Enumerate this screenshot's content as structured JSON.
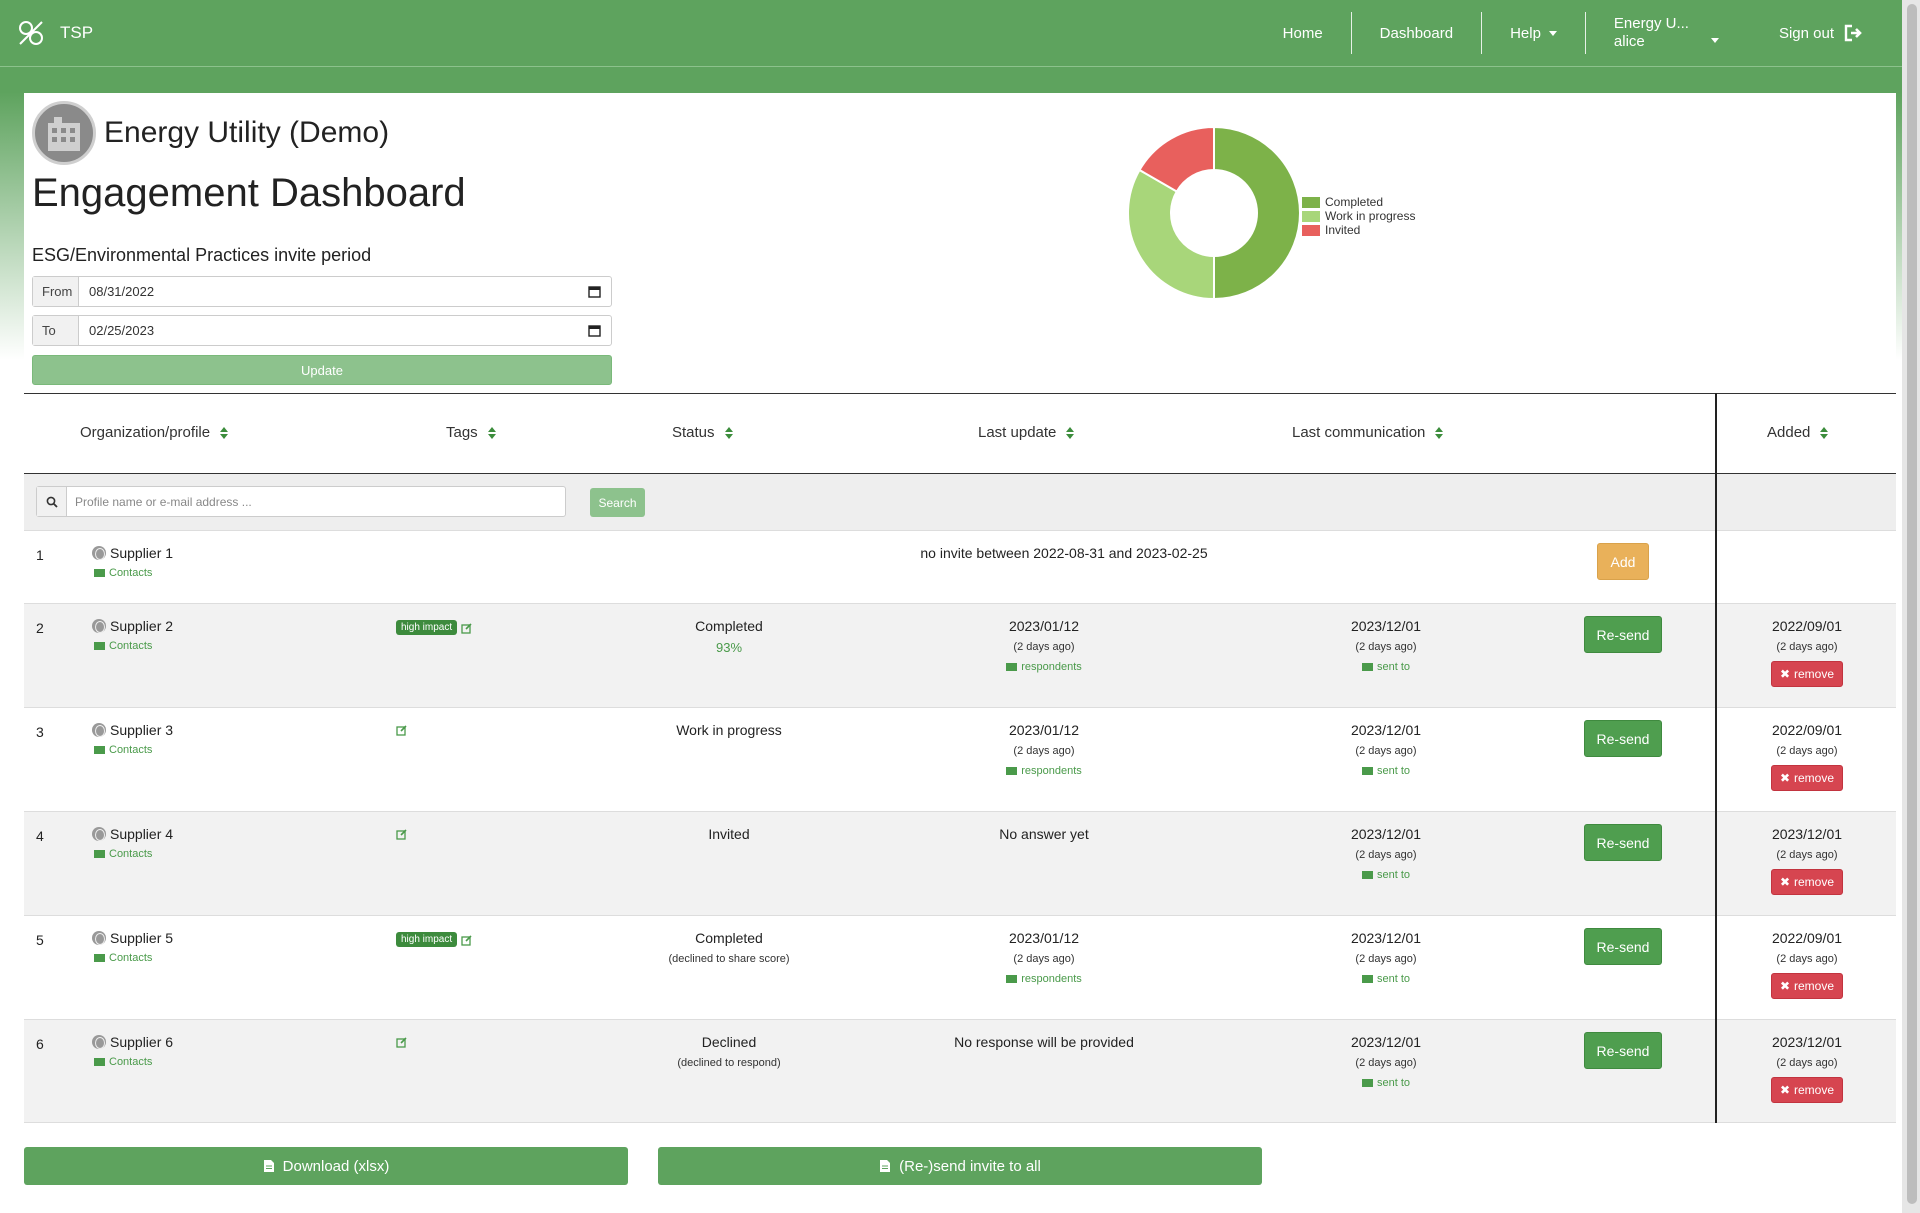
{
  "nav": {
    "brand": "TSP",
    "home": "Home",
    "dashboard": "Dashboard",
    "help": "Help",
    "org_short": "Energy U...",
    "user": "alice",
    "signout": "Sign out"
  },
  "header": {
    "org_name": "Energy Utility (Demo)",
    "title": "Engagement Dashboard",
    "period_label": "ESG/Environmental Practices invite period",
    "from_label": "From",
    "from_value": "08/31/2022",
    "to_label": "To",
    "to_value": "02/25/2023",
    "update_label": "Update"
  },
  "chart_data": {
    "type": "pie",
    "categories": [
      "Completed",
      "Work in progress",
      "Invited"
    ],
    "values": [
      3,
      2,
      1
    ],
    "colors": [
      "#7db249",
      "#a8d67a",
      "#e8605d"
    ],
    "legend_position": "right"
  },
  "table": {
    "columns": {
      "org": "Organization/profile",
      "tags": "Tags",
      "status": "Status",
      "last_update": "Last update",
      "last_comm": "Last communication",
      "added": "Added"
    },
    "search_placeholder": "Profile name or e-mail address ...",
    "search_label": "Search",
    "contacts_label": "Contacts",
    "resend_label": "Re-send",
    "add_label": "Add",
    "remove_label": "remove",
    "respondents_label": "respondents",
    "sent_to_label": "sent to",
    "rows": [
      {
        "idx": "1",
        "name": "Supplier 1",
        "note": "no invite between 2022-08-31 and 2023-02-25"
      },
      {
        "idx": "2",
        "name": "Supplier 2",
        "tag": "high impact",
        "status": "Completed",
        "status_sub": "93%",
        "upd": "2023/01/12",
        "upd_ago": "(2 days ago)",
        "comm": "2023/12/01",
        "comm_ago": "(2 days ago)",
        "added": "2022/09/01",
        "added_ago": "(2 days ago)"
      },
      {
        "idx": "3",
        "name": "Supplier 3",
        "status": "Work in progress",
        "upd": "2023/01/12",
        "upd_ago": "(2 days ago)",
        "comm": "2023/12/01",
        "comm_ago": "(2 days ago)",
        "added": "2022/09/01",
        "added_ago": "(2 days ago)"
      },
      {
        "idx": "4",
        "name": "Supplier 4",
        "status": "Invited",
        "upd_text": "No answer yet",
        "comm": "2023/12/01",
        "comm_ago": "(2 days ago)",
        "added": "2023/12/01",
        "added_ago": "(2 days ago)"
      },
      {
        "idx": "5",
        "name": "Supplier 5",
        "tag": "high impact",
        "status": "Completed",
        "status_sub": "(declined to share score)",
        "upd": "2023/01/12",
        "upd_ago": "(2 days ago)",
        "comm": "2023/12/01",
        "comm_ago": "(2 days ago)",
        "added": "2022/09/01",
        "added_ago": "(2 days ago)"
      },
      {
        "idx": "6",
        "name": "Supplier 6",
        "status": "Declined",
        "status_sub": "(declined to respond)",
        "upd_text": "No response will be provided",
        "comm": "2023/12/01",
        "comm_ago": "(2 days ago)",
        "added": "2023/12/01",
        "added_ago": "(2 days ago)"
      }
    ]
  },
  "footer": {
    "download_label": "Download (xlsx)",
    "resend_all_label": "(Re-)send invite to all"
  }
}
